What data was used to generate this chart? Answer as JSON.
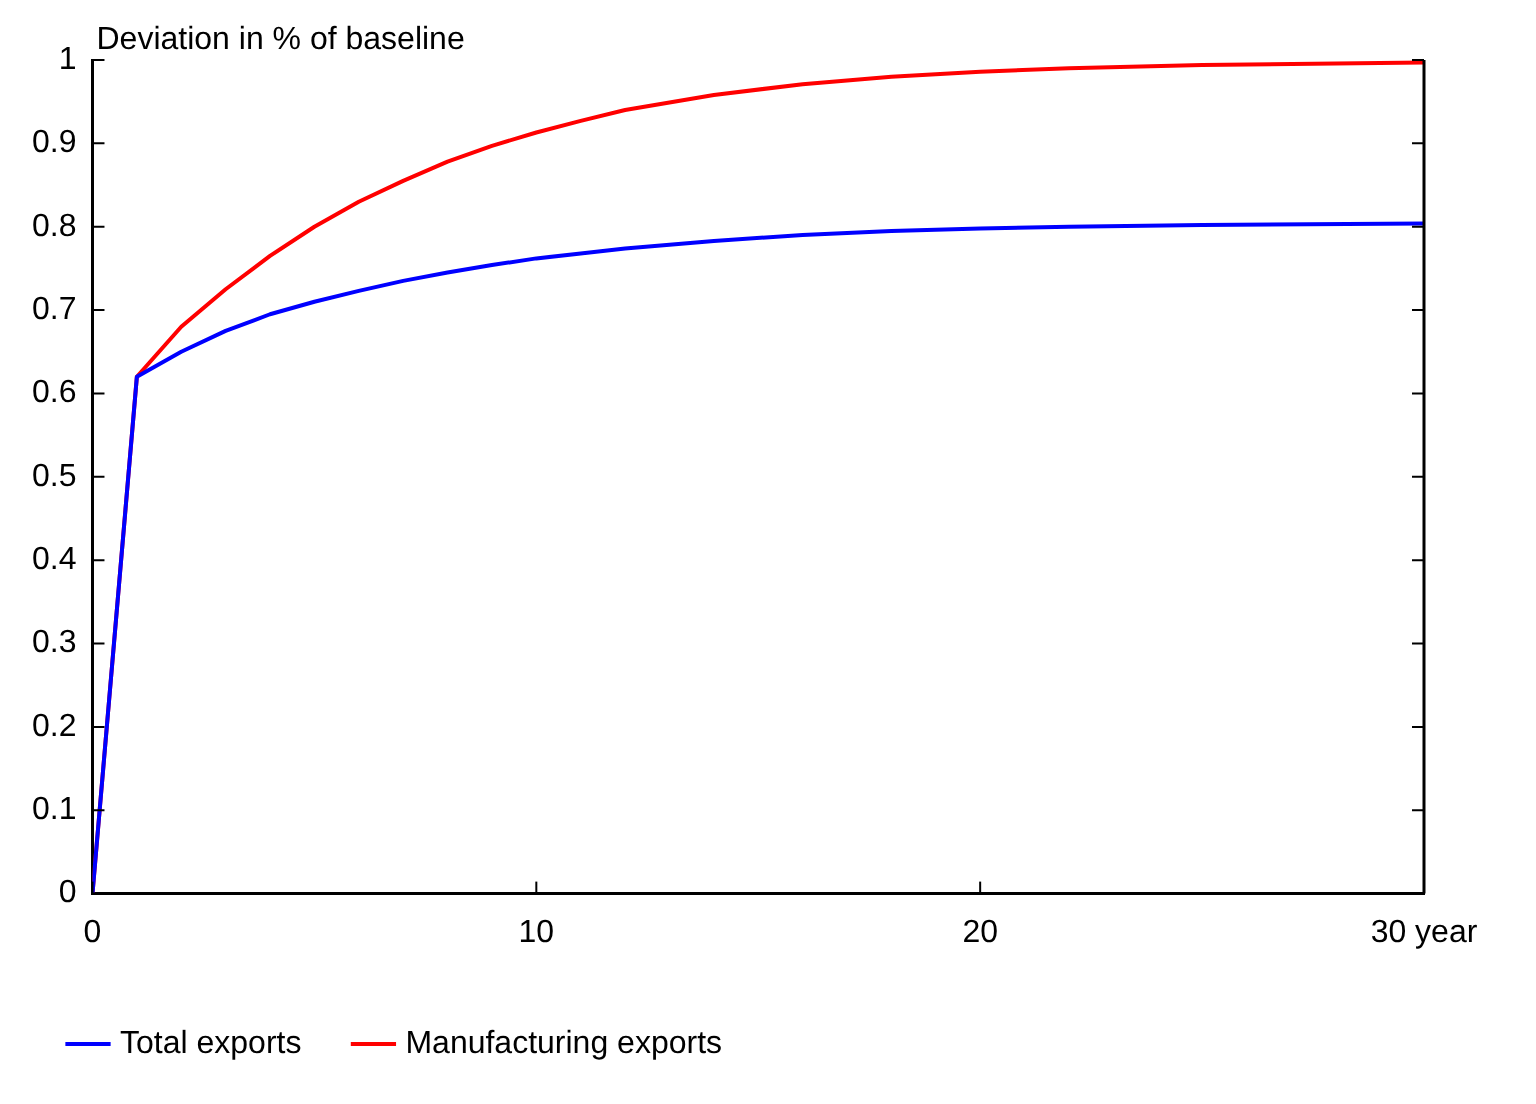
{
  "chart_data": {
    "type": "line",
    "ylabel": "Deviation in % of baseline",
    "x": [
      0,
      1,
      2,
      3,
      4,
      5,
      6,
      7,
      8,
      9,
      10,
      11,
      12,
      14,
      16,
      18,
      20,
      22,
      25,
      30
    ],
    "series": [
      {
        "name": "Total exports",
        "color": "#0000ff",
        "values": [
          0,
          0.62,
          0.65,
          0.675,
          0.695,
          0.71,
          0.723,
          0.735,
          0.745,
          0.754,
          0.762,
          0.768,
          0.774,
          0.783,
          0.79,
          0.795,
          0.798,
          0.8,
          0.802,
          0.804
        ]
      },
      {
        "name": "Manufacturing exports",
        "color": "#ff0000",
        "values": [
          0,
          0.62,
          0.68,
          0.725,
          0.765,
          0.8,
          0.83,
          0.855,
          0.878,
          0.897,
          0.913,
          0.927,
          0.94,
          0.958,
          0.971,
          0.98,
          0.986,
          0.99,
          0.994,
          0.997
        ]
      }
    ],
    "xlim": [
      0,
      30
    ],
    "xticks": [
      0,
      10,
      20,
      {
        "value": 30,
        "label": "30 year"
      }
    ],
    "ylim": [
      0,
      1
    ],
    "yticks": [
      0,
      0.1,
      0.2,
      0.3,
      0.4,
      0.5,
      0.6,
      0.7,
      0.8,
      0.9,
      1
    ],
    "grid": false,
    "legend": "bottom",
    "marker": "none",
    "line_style": "solid"
  }
}
